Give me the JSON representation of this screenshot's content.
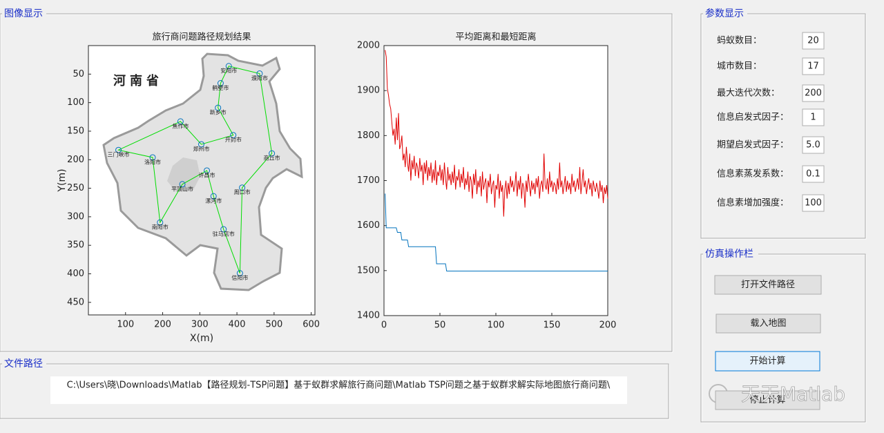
{
  "panels": {
    "image": "图像显示",
    "path": "文件路径",
    "params": "参数显示",
    "ops": "仿真操作栏"
  },
  "file_path": "C:\\Users\\晓\\Downloads\\Matlab【路径规划-TSP问题】基于蚁群求解旅行商问题\\Matlab TSP问题之基于蚁群求解实际地图旅行商问题\\",
  "params": [
    {
      "label": "蚂蚁数目：",
      "value": "20"
    },
    {
      "label": "城市数目：",
      "value": "17"
    },
    {
      "label": "最大迭代次数：",
      "value": "200"
    },
    {
      "label": "信息启发式因子：",
      "value": "1"
    },
    {
      "label": "期望启发式因子：",
      "value": "5.0"
    },
    {
      "label": "信息素蒸发系数：",
      "value": "0.1"
    },
    {
      "label": "信息素增加强度：",
      "value": "100"
    }
  ],
  "buttons": [
    "打开文件路径",
    "载入地图",
    "开始计算",
    "停止计算"
  ],
  "watermark": "天天Matlab",
  "chart_data": [
    {
      "type": "route",
      "title": "旅行商问题路径规划结果",
      "xlabel": "X(m)",
      "ylabel": "Y(m)",
      "map_label": "河南省",
      "cities": [
        "安阳市",
        "濮阳市",
        "商丘市",
        "周口市",
        "信阳市",
        "驻马店市",
        "漯河市",
        "许昌市",
        "平顶山市",
        "南阳市",
        "洛阳市",
        "三门峡市",
        "焦作市",
        "郑州市",
        "开封市",
        "新乡市",
        "鹤壁市"
      ],
      "x": [
        378,
        461,
        494,
        414,
        408,
        364,
        337,
        319,
        253,
        193,
        173,
        81,
        248,
        304,
        390,
        349,
        356
      ],
      "y": [
        36,
        49,
        189,
        249,
        399,
        322,
        264,
        219,
        243,
        310,
        196,
        183,
        133,
        173,
        157,
        109,
        66
      ],
      "color": "#00dd00",
      "marker_color": "#0072bd",
      "xlim": [
        0,
        610
      ],
      "ylim": [
        0,
        472
      ],
      "y_reversed": true,
      "xticks": [
        100,
        200,
        300,
        400,
        500,
        600
      ],
      "yticks": [
        50,
        100,
        150,
        200,
        250,
        300,
        350,
        400,
        450
      ]
    },
    {
      "type": "line",
      "title": "平均距离和最短距离",
      "x": [
        1,
        2,
        3,
        4,
        5,
        6,
        7,
        8,
        9,
        10,
        11,
        12,
        13,
        14,
        15,
        16,
        17,
        18,
        19,
        20,
        21,
        22,
        23,
        24,
        25,
        26,
        27,
        28,
        29,
        30,
        31,
        32,
        33,
        34,
        35,
        36,
        37,
        38,
        39,
        40,
        41,
        42,
        43,
        44,
        45,
        46,
        47,
        48,
        49,
        50,
        51,
        52,
        53,
        54,
        55,
        56,
        57,
        58,
        59,
        60,
        61,
        62,
        63,
        64,
        65,
        66,
        67,
        68,
        69,
        70,
        71,
        72,
        73,
        74,
        75,
        76,
        77,
        78,
        79,
        80,
        81,
        82,
        83,
        84,
        85,
        86,
        87,
        88,
        89,
        90,
        91,
        92,
        93,
        94,
        95,
        96,
        97,
        98,
        99,
        100,
        101,
        102,
        103,
        104,
        105,
        106,
        107,
        108,
        109,
        110,
        111,
        112,
        113,
        114,
        115,
        116,
        117,
        118,
        119,
        120,
        121,
        122,
        123,
        124,
        125,
        126,
        127,
        128,
        129,
        130,
        131,
        132,
        133,
        134,
        135,
        136,
        137,
        138,
        139,
        140,
        141,
        142,
        143,
        144,
        145,
        146,
        147,
        148,
        149,
        150,
        151,
        152,
        153,
        154,
        155,
        156,
        157,
        158,
        159,
        160,
        161,
        162,
        163,
        164,
        165,
        166,
        167,
        168,
        169,
        170,
        171,
        172,
        173,
        174,
        175,
        176,
        177,
        178,
        179,
        180,
        181,
        182,
        183,
        184,
        185,
        186,
        187,
        188,
        189,
        190,
        191,
        192,
        193,
        194,
        195,
        196,
        197,
        198,
        199,
        200
      ],
      "series": [
        {
          "color": "#e00000",
          "values": [
            1990,
            1975,
            1905,
            1890,
            1870,
            1860,
            1830,
            1800,
            1815,
            1780,
            1840,
            1790,
            1850,
            1770,
            1780,
            1800,
            1745,
            1760,
            1730,
            1775,
            1740,
            1720,
            1760,
            1700,
            1745,
            1725,
            1755,
            1710,
            1740,
            1730,
            1705,
            1750,
            1720,
            1735,
            1690,
            1740,
            1715,
            1745,
            1700,
            1730,
            1710,
            1740,
            1695,
            1725,
            1700,
            1745,
            1690,
            1720,
            1710,
            1735,
            1700,
            1725,
            1690,
            1740,
            1705,
            1680,
            1730,
            1700,
            1715,
            1690,
            1720,
            1695,
            1735,
            1680,
            1710,
            1700,
            1725,
            1685,
            1715,
            1695,
            1730,
            1680,
            1705,
            1690,
            1720,
            1675,
            1710,
            1700,
            1660,
            1715,
            1690,
            1725,
            1670,
            1700,
            1685,
            1710,
            1665,
            1720,
            1680,
            1695,
            1705,
            1650,
            1700,
            1685,
            1715,
            1670,
            1690,
            1700,
            1640,
            1690,
            1680,
            1715,
            1660,
            1700,
            1675,
            1690,
            1620,
            1680,
            1700,
            1660,
            1695,
            1670,
            1710,
            1685,
            1700,
            1675,
            1690,
            1720,
            1665,
            1700,
            1680,
            1710,
            1660,
            1695,
            1685,
            1640,
            1700,
            1675,
            1715,
            1690,
            1665,
            1700,
            1680,
            1695,
            1670,
            1705,
            1685,
            1710,
            1660,
            1690,
            1700,
            1675,
            1760,
            1690,
            1680,
            1705,
            1670,
            1720,
            1685,
            1700,
            1675,
            1695,
            1690,
            1670,
            1705,
            1680,
            1740,
            1685,
            1700,
            1670,
            1690,
            1710,
            1675,
            1700,
            1680,
            1695,
            1670,
            1715,
            1685,
            1700,
            1675,
            1690,
            1705,
            1680,
            1730,
            1670,
            1695,
            1725,
            1685,
            1700,
            1670,
            1690,
            1705,
            1680,
            1695,
            1665,
            1700,
            1685,
            1675,
            1695,
            1680,
            1660,
            1700,
            1675,
            1690,
            1650,
            1685,
            1670,
            1690,
            1660
          ]
        },
        {
          "color": "#0072bd",
          "values": [
            1671,
            1595,
            1595,
            1595,
            1595,
            1595,
            1595,
            1595,
            1595,
            1595,
            1595,
            1585,
            1585,
            1585,
            1585,
            1568,
            1568,
            1568,
            1568,
            1568,
            1568,
            1553,
            1553,
            1553,
            1553,
            1553,
            1553,
            1553,
            1553,
            1553,
            1553,
            1553,
            1553,
            1553,
            1553,
            1553,
            1553,
            1553,
            1553,
            1553,
            1553,
            1553,
            1553,
            1553,
            1553,
            1553,
            1515,
            1515,
            1515,
            1515,
            1515,
            1515,
            1515,
            1515,
            1515,
            1499,
            1499,
            1499,
            1499,
            1499,
            1499,
            1499,
            1499,
            1499,
            1499,
            1499,
            1499,
            1499,
            1499,
            1499,
            1499,
            1499,
            1499,
            1499,
            1499,
            1499,
            1499,
            1499,
            1499,
            1499,
            1499,
            1499,
            1499,
            1499,
            1499,
            1499,
            1499,
            1499,
            1499,
            1499,
            1499,
            1499,
            1499,
            1499,
            1499,
            1499,
            1499,
            1499,
            1499,
            1499,
            1499,
            1499,
            1499,
            1499,
            1499,
            1499,
            1499,
            1499,
            1499,
            1499,
            1499,
            1499,
            1499,
            1499,
            1499,
            1499,
            1499,
            1499,
            1499,
            1499,
            1499,
            1499,
            1499,
            1499,
            1499,
            1499,
            1499,
            1499,
            1499,
            1499,
            1499,
            1499,
            1499,
            1499,
            1499,
            1499,
            1499,
            1499,
            1499,
            1499,
            1499,
            1499,
            1499,
            1499,
            1499,
            1499,
            1499,
            1499,
            1499,
            1499,
            1499,
            1499,
            1499,
            1499,
            1499,
            1499,
            1499,
            1499,
            1499,
            1499,
            1499,
            1499,
            1499,
            1499,
            1499,
            1499,
            1499,
            1499,
            1499,
            1499,
            1499,
            1499,
            1499,
            1499,
            1499,
            1499,
            1499,
            1499,
            1499,
            1499,
            1499,
            1499,
            1499,
            1499,
            1499,
            1499,
            1499,
            1499,
            1499,
            1499,
            1499,
            1499,
            1499,
            1499,
            1499,
            1499,
            1499,
            1499,
            1499,
            1499
          ]
        }
      ],
      "xlim": [
        0,
        200
      ],
      "ylim": [
        1400,
        2000
      ],
      "xticks": [
        0,
        50,
        100,
        150,
        200
      ],
      "yticks": [
        1400,
        1500,
        1600,
        1700,
        1800,
        1900,
        2000
      ]
    }
  ]
}
